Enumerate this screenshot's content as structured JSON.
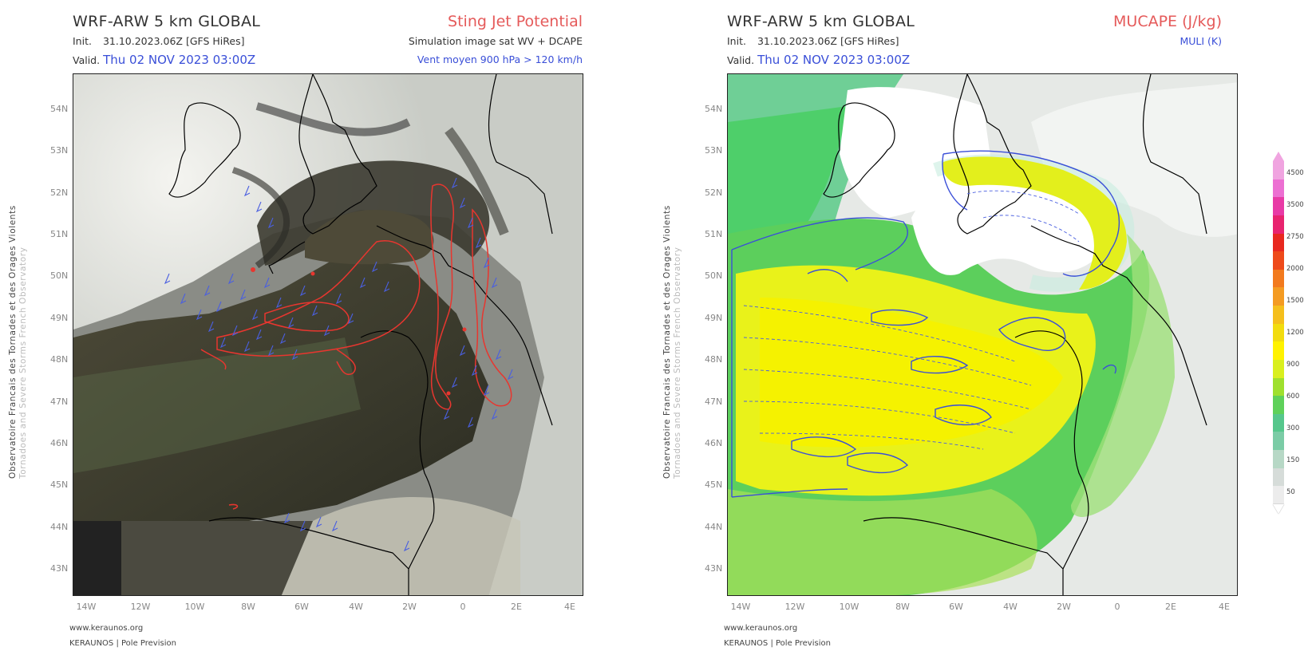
{
  "left": {
    "title": "WRF-ARW 5 km GLOBAL",
    "init_label": "Init.",
    "init_value": "31.10.2023.06Z [GFS HiRes]",
    "valid_label": "Valid.",
    "valid_value": "Thu 02 NOV 2023 03:00Z",
    "right_title": "Sting Jet Potential",
    "right_sub1": "Simulation image sat WV + DCAPE",
    "right_sub2": "Vent moyen 900 hPa > 120 km/h",
    "footer_url": "www.keraunos.org",
    "footer_org": "KERAUNOS | Pole Prevision",
    "side_line1": "Observatoire Francais des Tornades et des Orages Violents",
    "side_line2": "Tornadoes and Severe Storms French Observatory"
  },
  "right": {
    "title": "WRF-ARW 5 km GLOBAL",
    "init_label": "Init.",
    "init_value": "31.10.2023.06Z [GFS HiRes]",
    "valid_label": "Valid.",
    "valid_value": "Thu 02 NOV 2023 03:00Z",
    "right_title": "MUCAPE (J/kg)",
    "right_sub1": "MULI (K)",
    "footer_url": "www.keraunos.org",
    "footer_org": "KERAUNOS | Pole Prevision",
    "side_line1": "Observatoire Francais des Tornades et des Orages Violents",
    "side_line2": "Tornadoes and Severe Storms French Observatory"
  },
  "axes": {
    "lat_labels": [
      "54N",
      "53N",
      "52N",
      "51N",
      "50N",
      "49N",
      "48N",
      "47N",
      "46N",
      "45N",
      "44N",
      "43N"
    ],
    "lon_labels": [
      "14W",
      "12W",
      "10W",
      "8W",
      "6W",
      "4W",
      "2W",
      "0",
      "2E",
      "4E"
    ]
  },
  "colorbar": {
    "ticks": [
      "4500",
      "3500",
      "2750",
      "2000",
      "1500",
      "1200",
      "900",
      "600",
      "300",
      "150",
      "50"
    ],
    "colors": [
      "#f0a4e0",
      "#ec6fd2",
      "#e83aa6",
      "#e8236f",
      "#e8281f",
      "#ee4a1a",
      "#f27a1e",
      "#f49b22",
      "#f5bf1c",
      "#f2dc0f",
      "#fff200",
      "#d9ef1e",
      "#9fe02e",
      "#5fd15a",
      "#56c78c",
      "#7bcca6",
      "#b7d8c6",
      "#d6dcd9",
      "#ececec"
    ],
    "top_color": "#f0a4e0",
    "bottom_color": "#ffffff"
  }
}
